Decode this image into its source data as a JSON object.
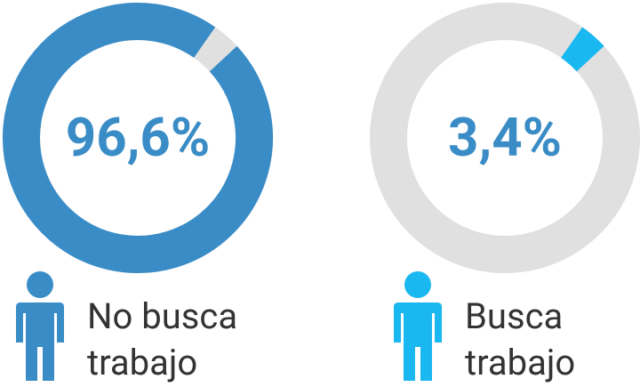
{
  "chart_data": [
    {
      "type": "donut",
      "label": "No busca trabajo",
      "value": 96.6,
      "value_label": "96,6%",
      "color": "#3a8cc6",
      "track_color": "#e0e0e0",
      "text_color": "#3a8cc6"
    },
    {
      "type": "donut",
      "label": "Busca trabajo",
      "value": 3.4,
      "value_label": "3,4%",
      "color": "#1ab8f0",
      "track_color": "#e0e0e0",
      "text_color": "#3a8cc6"
    }
  ]
}
